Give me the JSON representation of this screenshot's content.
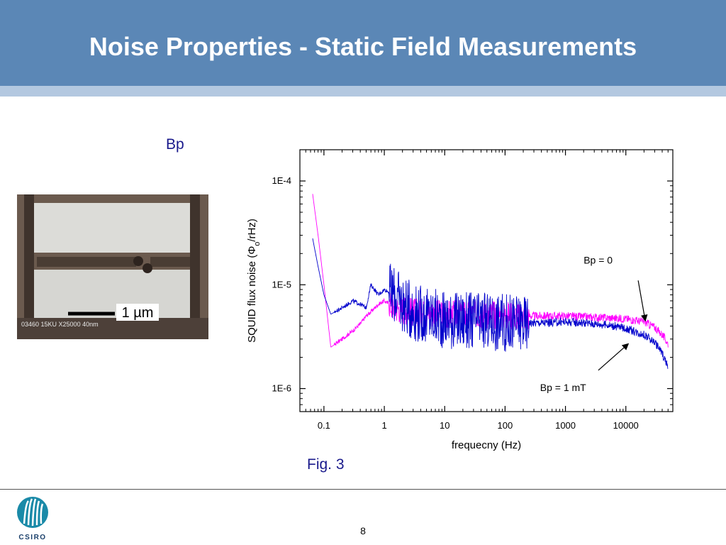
{
  "slide": {
    "title": "Noise Properties - Static Field Measurements",
    "bp_label": "Bp",
    "micrograph_scale_label": "1 µm",
    "micrograph_overlay_text": "03460  15KU  X25000  40nm",
    "fig_caption": "Fig. 3",
    "page_number": "8",
    "logo_text": "CSIRO",
    "colors": {
      "header": "#5b87b6",
      "header_stripe": "#b3c8e0",
      "caption": "#1a1a8c"
    }
  },
  "chart_data": {
    "type": "line",
    "title": "",
    "xlabel": "frequecny (Hz)",
    "ylabel": "SQUID flux noise (Φo/rHz)",
    "ylabel_parts": {
      "before": "SQUID flux noise (Φ",
      "sub": "o",
      "after": "/rHz)"
    },
    "x_scale": "log",
    "y_scale": "log",
    "xlim": [
      0.04,
      60000
    ],
    "ylim": [
      6e-07,
      0.0002
    ],
    "x_ticks": [
      0.1,
      1,
      10,
      100,
      1000,
      10000
    ],
    "x_tick_labels": [
      "0.1",
      "1",
      "10",
      "100",
      "1000",
      "10000"
    ],
    "y_ticks": [
      1e-06,
      1e-05,
      0.0001
    ],
    "y_tick_labels": [
      "1E-6",
      "1E-5",
      "1E-4"
    ],
    "grid": false,
    "series": [
      {
        "label": "Bp = 0",
        "color": "#ff00ff",
        "x": [
          0.065,
          0.08,
          0.1,
          0.13,
          0.2,
          0.3,
          0.4,
          0.5,
          0.6,
          0.8,
          1,
          1.5,
          2,
          3,
          5,
          10,
          20,
          50,
          100,
          200,
          500,
          1000,
          2000,
          5000,
          10000,
          20000,
          30000,
          40000,
          50000
        ],
        "y": [
          7.5e-05,
          3e-05,
          1e-05,
          2.5e-06,
          3e-06,
          3.6e-06,
          4.2e-06,
          5e-06,
          5.5e-06,
          6.5e-06,
          7e-06,
          6e-06,
          5.8e-06,
          5.5e-06,
          5.3e-06,
          5.2e-06,
          5.2e-06,
          5.2e-06,
          5.1e-06,
          5e-06,
          5e-06,
          5e-06,
          4.9e-06,
          4.8e-06,
          4.7e-06,
          4.4e-06,
          3.9e-06,
          3.3e-06,
          2.7e-06
        ]
      },
      {
        "label": "Bp = 1 mT",
        "color": "#0000cc",
        "x": [
          0.065,
          0.08,
          0.1,
          0.13,
          0.2,
          0.3,
          0.4,
          0.5,
          0.6,
          0.8,
          1,
          1.5,
          2,
          3,
          5,
          10,
          20,
          50,
          100,
          200,
          500,
          1000,
          2000,
          5000,
          10000,
          20000,
          30000,
          40000,
          50000
        ],
        "y": [
          2.8e-05,
          1.5e-05,
          8e-06,
          5.2e-06,
          6e-06,
          7e-06,
          6.5e-06,
          6e-06,
          1e-05,
          8e-06,
          9e-06,
          8e-06,
          6.5e-06,
          5.5e-06,
          5e-06,
          4.6e-06,
          4.5e-06,
          4.4e-06,
          4.3e-06,
          4.3e-06,
          4.3e-06,
          4.4e-06,
          4.3e-06,
          4.1e-06,
          3.8e-06,
          3.3e-06,
          2.8e-06,
          2.2e-06,
          1.6e-06
        ]
      }
    ],
    "annotations": [
      {
        "text": "Bp = 0",
        "x": 2000,
        "y": 1.6e-05,
        "arrow_from": [
          16000,
          1.1e-05
        ],
        "arrow_to": [
          21000,
          4.5e-06
        ]
      },
      {
        "text": "Bp = 1 mT",
        "x": 380,
        "y": 9.5e-07,
        "arrow_from": [
          3500,
          1.5e-06
        ],
        "arrow_to": [
          11000,
          2.7e-06
        ]
      }
    ]
  }
}
